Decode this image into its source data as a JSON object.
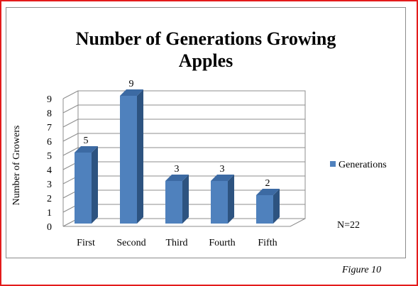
{
  "chart_data": {
    "type": "bar",
    "title": "Number of Generations Growing Apples",
    "title_lines": [
      "Number of Generations Growing",
      "Apples"
    ],
    "xlabel": "",
    "ylabel": "Number of Growers",
    "categories": [
      "First",
      "Second",
      "Third",
      "Fourth",
      "Fifth"
    ],
    "series": [
      {
        "name": "Generations",
        "values": [
          5,
          9,
          3,
          3,
          2
        ],
        "color": "#4f81bd"
      }
    ],
    "ylim": [
      0,
      9
    ],
    "yticks": [
      0,
      1,
      2,
      3,
      4,
      5,
      6,
      7,
      8,
      9
    ],
    "data_labels": [
      "5",
      "9",
      "3",
      "3",
      "2"
    ],
    "grid": true,
    "legend": "right",
    "annotation": "N=22"
  },
  "caption": "Figure 10",
  "colors": {
    "frame_border": "#e31b1b",
    "bar_front": "#4f81bd",
    "bar_side": "#2d5380",
    "bar_top": "#3c6aa3"
  }
}
